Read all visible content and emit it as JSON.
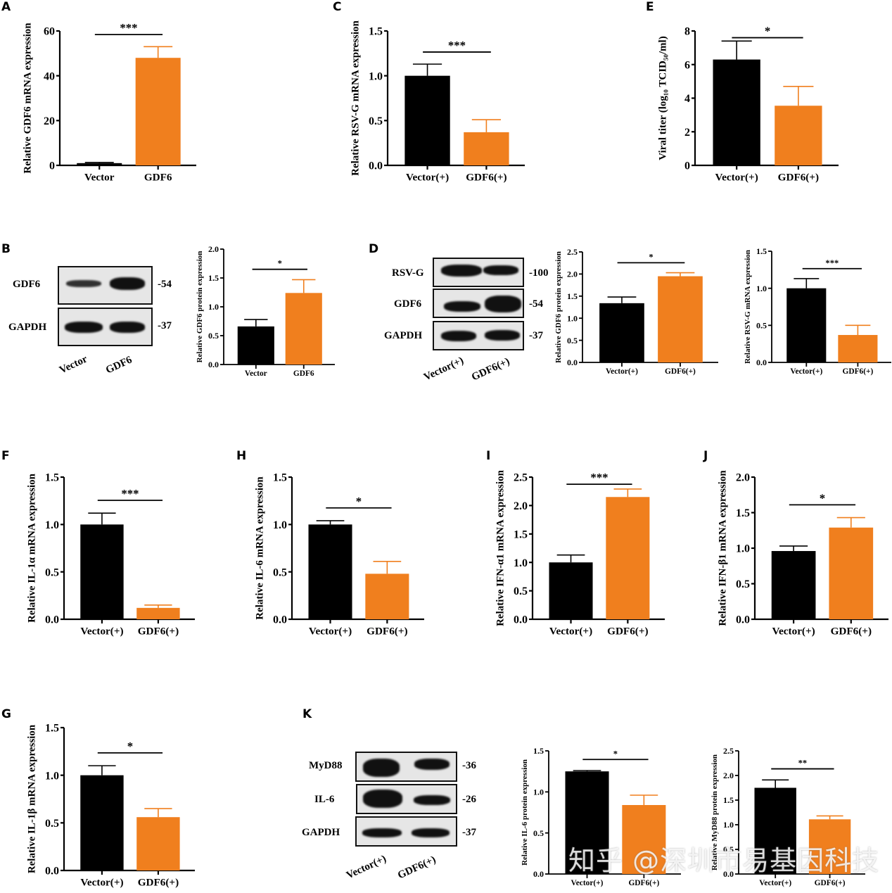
{
  "colors": {
    "vector": "#000000",
    "gdf6": "#f07f1e",
    "axis": "#000000"
  },
  "panel_letters": [
    "A",
    "B",
    "C",
    "D",
    "E",
    "F",
    "G",
    "H",
    "I",
    "J",
    "K"
  ],
  "chart_data": [
    {
      "id": "A",
      "type": "bar",
      "title": "",
      "xlabel": "",
      "ylabel": "Relative GDF6 mRNA expression",
      "categories": [
        "Vector",
        "GDF6"
      ],
      "values": [
        1.0,
        48.0
      ],
      "errors": [
        0.3,
        5.0
      ],
      "ylim": [
        0,
        60
      ],
      "yticks": [
        "0",
        "20",
        "40",
        "60"
      ],
      "yticks_values": [
        0,
        20,
        40,
        60
      ],
      "significance": "***",
      "grid": false
    },
    {
      "id": "B",
      "type": "bar",
      "ylabel": "Relative GDF6 protein expression",
      "categories": [
        "Vector",
        "GDF6"
      ],
      "values": [
        0.66,
        1.24
      ],
      "errors": [
        0.12,
        0.23
      ],
      "ylim": [
        0,
        2.0
      ],
      "yticks": [
        "0.0",
        "0.5",
        "1.0",
        "1.5",
        "2.0"
      ],
      "yticks_values": [
        0,
        0.5,
        1,
        1.5,
        2
      ],
      "significance": "*",
      "grid": false
    },
    {
      "id": "C",
      "type": "bar",
      "ylabel": "Relative RSV-G mRNA expression",
      "categories": [
        "Vector(+)",
        "GDF6(+)"
      ],
      "values": [
        1.0,
        0.37
      ],
      "errors": [
        0.13,
        0.14
      ],
      "ylim": [
        0,
        1.5
      ],
      "yticks": [
        "0.0",
        "0.5",
        "1.0",
        "1.5"
      ],
      "yticks_values": [
        0,
        0.5,
        1,
        1.5
      ],
      "significance": "***",
      "grid": false
    },
    {
      "id": "D1",
      "type": "bar",
      "ylabel": "Relative GDF6 protein expression",
      "categories": [
        "Vector(+)",
        "GDF6(+)"
      ],
      "values": [
        1.34,
        1.95
      ],
      "errors": [
        0.14,
        0.08
      ],
      "ylim": [
        0,
        2.5
      ],
      "yticks": [
        "0.0",
        "0.5",
        "1.0",
        "1.5",
        "2.0",
        "2.5"
      ],
      "yticks_values": [
        0,
        0.5,
        1,
        1.5,
        2,
        2.5
      ],
      "significance": "*",
      "grid": false
    },
    {
      "id": "D2",
      "type": "bar",
      "ylabel": "Relative RSV-G mRNA expression",
      "categories": [
        "Vector(+)",
        "GDF6(+)"
      ],
      "values": [
        1.0,
        0.37
      ],
      "errors": [
        0.13,
        0.13
      ],
      "ylim": [
        0,
        1.5
      ],
      "yticks": [
        "0.0",
        "0.5",
        "1.0",
        "1.5"
      ],
      "yticks_values": [
        0,
        0.5,
        1,
        1.5
      ],
      "significance": "***",
      "grid": false
    },
    {
      "id": "E",
      "type": "bar",
      "ylabel": "Viral titer (log₁₀ TCID₅₀/ml)",
      "categories": [
        "Vector(+)",
        "GDF6(+)"
      ],
      "values": [
        6.3,
        3.55
      ],
      "errors": [
        1.1,
        1.15
      ],
      "ylim": [
        0,
        8
      ],
      "yticks": [
        "0",
        "2",
        "4",
        "6",
        "8"
      ],
      "yticks_values": [
        0,
        2,
        4,
        6,
        8
      ],
      "significance": "*",
      "grid": false
    },
    {
      "id": "F",
      "type": "bar",
      "ylabel": "Relative IL-1α mRNA expression",
      "categories": [
        "Vector(+)",
        "GDF6(+)"
      ],
      "values": [
        1.0,
        0.12
      ],
      "errors": [
        0.12,
        0.03
      ],
      "ylim": [
        0,
        1.5
      ],
      "yticks": [
        "0.0",
        "0.5",
        "1.0",
        "1.5"
      ],
      "yticks_values": [
        0,
        0.5,
        1,
        1.5
      ],
      "significance": "***",
      "grid": false
    },
    {
      "id": "H",
      "type": "bar",
      "ylabel": "Relative IL-6 mRNA expression",
      "categories": [
        "Vector(+)",
        "GDF6(+)"
      ],
      "values": [
        1.0,
        0.48
      ],
      "errors": [
        0.04,
        0.13
      ],
      "ylim": [
        0,
        1.5
      ],
      "yticks": [
        "0.0",
        "0.5",
        "1.0",
        "1.5"
      ],
      "yticks_values": [
        0,
        0.5,
        1,
        1.5
      ],
      "significance": "*",
      "grid": false
    },
    {
      "id": "I",
      "type": "bar",
      "ylabel": "Relative IFN-α1 mRNA expression",
      "categories": [
        "Vector(+)",
        "GDF6(+)"
      ],
      "values": [
        1.0,
        2.15
      ],
      "errors": [
        0.13,
        0.14
      ],
      "ylim": [
        0,
        2.5
      ],
      "yticks": [
        "0.0",
        "0.5",
        "1.0",
        "1.5",
        "2.0",
        "2.5"
      ],
      "yticks_values": [
        0,
        0.5,
        1,
        1.5,
        2,
        2.5
      ],
      "significance": "***",
      "grid": false
    },
    {
      "id": "J",
      "type": "bar",
      "ylabel": "Relative IFN-β1 mRNA expression",
      "categories": [
        "Vector(+)",
        "GDF6(+)"
      ],
      "values": [
        0.96,
        1.29
      ],
      "errors": [
        0.07,
        0.14
      ],
      "ylim": [
        0,
        2.0
      ],
      "yticks": [
        "0.0",
        "0.5",
        "1.0",
        "1.5",
        "2.0"
      ],
      "yticks_values": [
        0,
        0.5,
        1,
        1.5,
        2
      ],
      "significance": "*",
      "grid": false
    },
    {
      "id": "G",
      "type": "bar",
      "ylabel": "Relative IL-1β mRNA expression",
      "categories": [
        "Vector(+)",
        "GDF6(+)"
      ],
      "values": [
        1.0,
        0.56
      ],
      "errors": [
        0.1,
        0.09
      ],
      "ylim": [
        0,
        1.5
      ],
      "yticks": [
        "0.0",
        "0.5",
        "1.0",
        "1.5"
      ],
      "yticks_values": [
        0,
        0.5,
        1,
        1.5
      ],
      "significance": "*",
      "grid": false
    },
    {
      "id": "K1",
      "type": "bar",
      "ylabel": "Relative IL-6 protein expression",
      "categories": [
        "Vector(+)",
        "GDF6(+)"
      ],
      "values": [
        1.25,
        0.84
      ],
      "errors": [
        0.01,
        0.12
      ],
      "ylim": [
        0,
        1.5
      ],
      "yticks": [
        "0.0",
        "0.5",
        "1.0",
        "1.5"
      ],
      "yticks_values": [
        0,
        0.5,
        1,
        1.5
      ],
      "significance": "*",
      "grid": false
    },
    {
      "id": "K2",
      "type": "bar",
      "ylabel": "Relative MyD88 protein expression",
      "categories": [
        "Vector(+)",
        "GDF6(+)"
      ],
      "values": [
        1.75,
        1.11
      ],
      "errors": [
        0.16,
        0.07
      ],
      "ylim": [
        0,
        2.5
      ],
      "yticks": [
        "0.0",
        "0.5",
        "1.0",
        "1.5",
        "2.0",
        "2.5"
      ],
      "yticks_values": [
        0,
        0.5,
        1,
        1.5,
        2,
        2.5
      ],
      "significance": "**",
      "grid": false
    }
  ],
  "blots": {
    "B": {
      "rows": [
        {
          "protein": "GDF6",
          "mw": "-54"
        },
        {
          "protein": "GAPDH",
          "mw": "-37"
        }
      ],
      "lanes": [
        "Vector",
        "GDF6"
      ]
    },
    "D": {
      "rows": [
        {
          "protein": "RSV-G",
          "mw": "-100"
        },
        {
          "protein": "GDF6",
          "mw": "-54"
        },
        {
          "protein": "GAPDH",
          "mw": "-37"
        }
      ],
      "lanes": [
        "Vector(+)",
        "GDF6(+)"
      ]
    },
    "K": {
      "rows": [
        {
          "protein": "MyD88",
          "mw": "-36"
        },
        {
          "protein": "IL-6",
          "mw": "-26"
        },
        {
          "protein": "GAPDH",
          "mw": "-37"
        }
      ],
      "lanes": [
        "Vector(+)",
        "GDF6(+)"
      ]
    }
  },
  "watermark": "知乎 @深圳市易基因科技"
}
